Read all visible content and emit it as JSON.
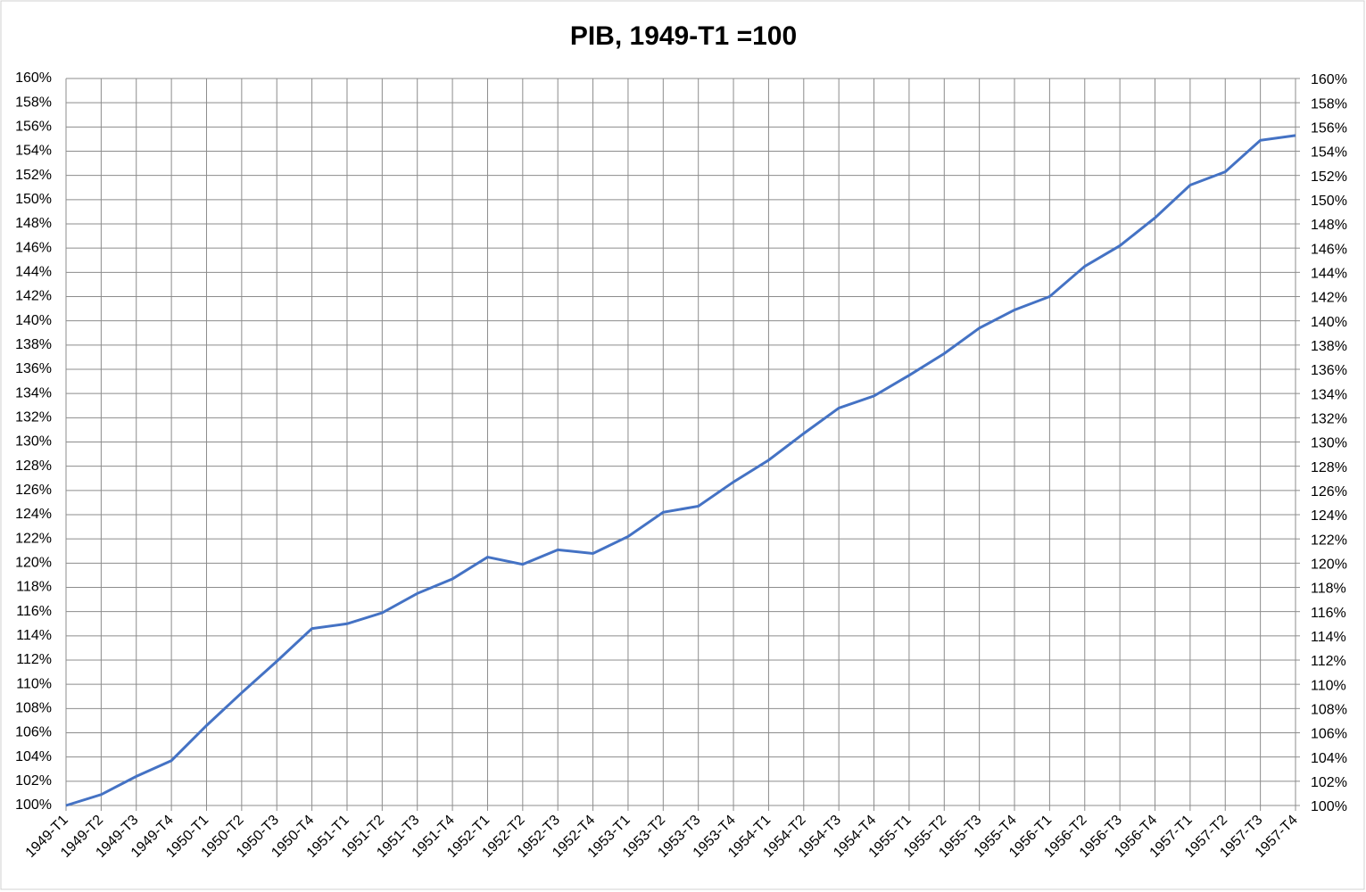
{
  "chart_data": {
    "type": "line",
    "title": "PIB, 1949-T1 =100",
    "categories": [
      "1949-T1",
      "1949-T2",
      "1949-T3",
      "1949-T4",
      "1950-T1",
      "1950-T2",
      "1950-T3",
      "1950-T4",
      "1951-T1",
      "1951-T2",
      "1951-T3",
      "1951-T4",
      "1952-T1",
      "1952-T2",
      "1952-T3",
      "1952-T4",
      "1953-T1",
      "1953-T2",
      "1953-T3",
      "1953-T4",
      "1954-T1",
      "1954-T2",
      "1954-T3",
      "1954-T4",
      "1955-T1",
      "1955-T2",
      "1955-T3",
      "1955-T4",
      "1956-T1",
      "1956-T2",
      "1956-T3",
      "1956-T4",
      "1957-T1",
      "1957-T2",
      "1957-T3",
      "1957-T4"
    ],
    "series": [
      {
        "color": "#4472c4",
        "values": [
          100,
          100.9,
          102.4,
          103.7,
          106.6,
          109.3,
          111.9,
          114.6,
          115.0,
          115.9,
          117.5,
          118.7,
          120.5,
          119.9,
          121.1,
          120.8,
          122.2,
          124.2,
          124.7,
          126.7,
          128.5,
          130.7,
          132.8,
          133.8,
          135.5,
          137.3,
          139.4,
          140.9,
          142.0,
          144.5,
          146.2,
          148.5,
          151.2,
          152.3,
          154.9,
          155.3
        ]
      }
    ],
    "ylim": [
      100,
      160
    ],
    "yticks": [
      {
        "value": 100,
        "label": "100%"
      },
      {
        "value": 102,
        "label": "102%"
      },
      {
        "value": 104,
        "label": "104%"
      },
      {
        "value": 106,
        "label": "106%"
      },
      {
        "value": 108,
        "label": "108%"
      },
      {
        "value": 110,
        "label": "110%"
      },
      {
        "value": 112,
        "label": "112%"
      },
      {
        "value": 114,
        "label": "114%"
      },
      {
        "value": 116,
        "label": "116%"
      },
      {
        "value": 118,
        "label": "118%"
      },
      {
        "value": 120,
        "label": "120%"
      },
      {
        "value": 122,
        "label": "122%"
      },
      {
        "value": 124,
        "label": "124%"
      },
      {
        "value": 126,
        "label": "126%"
      },
      {
        "value": 128,
        "label": "128%"
      },
      {
        "value": 130,
        "label": "130%"
      },
      {
        "value": 132,
        "label": "132%"
      },
      {
        "value": 134,
        "label": "134%"
      },
      {
        "value": 136,
        "label": "136%"
      },
      {
        "value": 138,
        "label": "138%"
      },
      {
        "value": 140,
        "label": "140%"
      },
      {
        "value": 142,
        "label": "142%"
      },
      {
        "value": 144,
        "label": "144%"
      },
      {
        "value": 146,
        "label": "146%"
      },
      {
        "value": 148,
        "label": "148%"
      },
      {
        "value": 150,
        "label": "150%"
      },
      {
        "value": 152,
        "label": "152%"
      },
      {
        "value": 154,
        "label": "154%"
      },
      {
        "value": 156,
        "label": "156%"
      },
      {
        "value": 158,
        "label": "158%"
      },
      {
        "value": 160,
        "label": "160%"
      }
    ],
    "y2lim": [
      100,
      160
    ],
    "y2ticks": [
      {
        "value": 100,
        "label": "100%"
      },
      {
        "value": 102,
        "label": "102%"
      },
      {
        "value": 104,
        "label": "104%"
      },
      {
        "value": 106,
        "label": "106%"
      },
      {
        "value": 108,
        "label": "108%"
      },
      {
        "value": 110,
        "label": "110%"
      },
      {
        "value": 112,
        "label": "112%"
      },
      {
        "value": 114,
        "label": "114%"
      },
      {
        "value": 116,
        "label": "116%"
      },
      {
        "value": 118,
        "label": "118%"
      },
      {
        "value": 120,
        "label": "120%"
      },
      {
        "value": 122,
        "label": "122%"
      },
      {
        "value": 124,
        "label": "124%"
      },
      {
        "value": 126,
        "label": "126%"
      },
      {
        "value": 128,
        "label": "128%"
      },
      {
        "value": 130,
        "label": "130%"
      },
      {
        "value": 132,
        "label": "132%"
      },
      {
        "value": 134,
        "label": "134%"
      },
      {
        "value": 136,
        "label": "136%"
      },
      {
        "value": 138,
        "label": "138%"
      },
      {
        "value": 140,
        "label": "140%"
      },
      {
        "value": 142,
        "label": "142%"
      },
      {
        "value": 144,
        "label": "144%"
      },
      {
        "value": 146,
        "label": "146%"
      },
      {
        "value": 148,
        "label": "148%"
      },
      {
        "value": 150,
        "label": "150%"
      },
      {
        "value": 152,
        "label": "152%"
      },
      {
        "value": 154,
        "label": "154%"
      },
      {
        "value": 156,
        "label": "156%"
      },
      {
        "value": 158,
        "label": "158%"
      },
      {
        "value": 160,
        "label": "160%"
      }
    ],
    "grid": true
  }
}
